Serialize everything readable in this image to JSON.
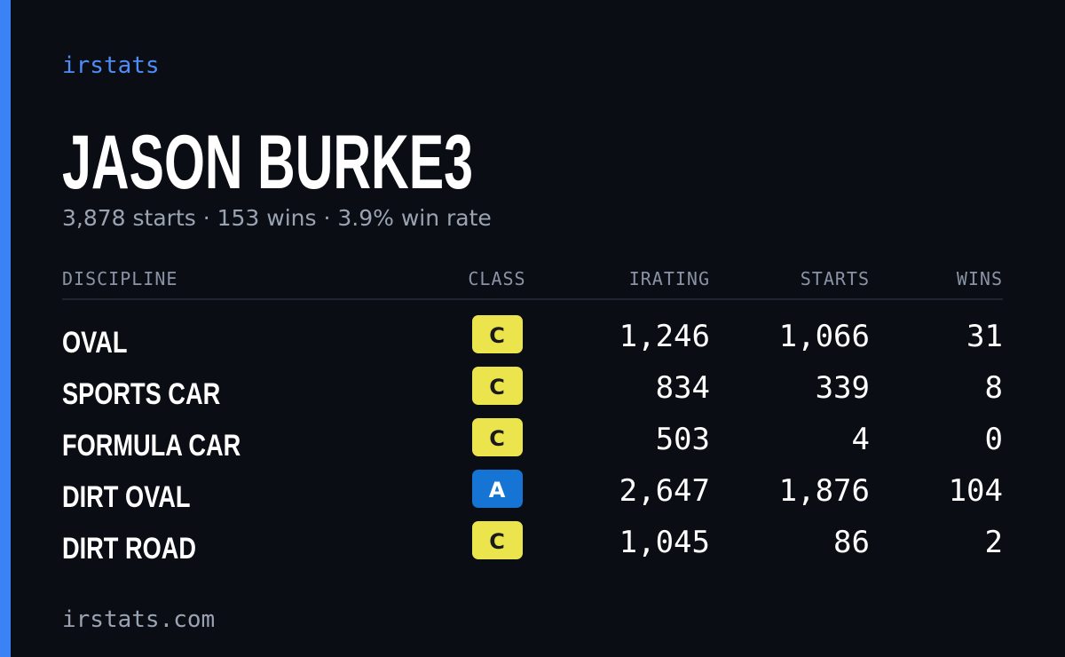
{
  "brand": "irstats",
  "driver": {
    "name": "JASON BURKE3",
    "summary": "3,878 starts · 153 wins · 3.9% win rate"
  },
  "table": {
    "columns": [
      "DISCIPLINE",
      "CLASS",
      "IRATING",
      "STARTS",
      "WINS"
    ],
    "rows": [
      {
        "discipline": "OVAL",
        "class": "C",
        "badge_color": "#ece44c",
        "badge_text_color": "#1a1a1a",
        "irating": "1,246",
        "starts": "1,066",
        "wins": "31"
      },
      {
        "discipline": "SPORTS CAR",
        "class": "C",
        "badge_color": "#ece44c",
        "badge_text_color": "#1a1a1a",
        "irating": "834",
        "starts": "339",
        "wins": "8"
      },
      {
        "discipline": "FORMULA CAR",
        "class": "C",
        "badge_color": "#ece44c",
        "badge_text_color": "#1a1a1a",
        "irating": "503",
        "starts": "4",
        "wins": "0"
      },
      {
        "discipline": "DIRT OVAL",
        "class": "A",
        "badge_color": "#1574d4",
        "badge_text_color": "#ffffff",
        "irating": "2,647",
        "starts": "1,876",
        "wins": "104"
      },
      {
        "discipline": "DIRT ROAD",
        "class": "C",
        "badge_color": "#ece44c",
        "badge_text_color": "#1a1a1a",
        "irating": "1,045",
        "starts": "86",
        "wins": "2"
      }
    ]
  },
  "footer": "irstats.com"
}
